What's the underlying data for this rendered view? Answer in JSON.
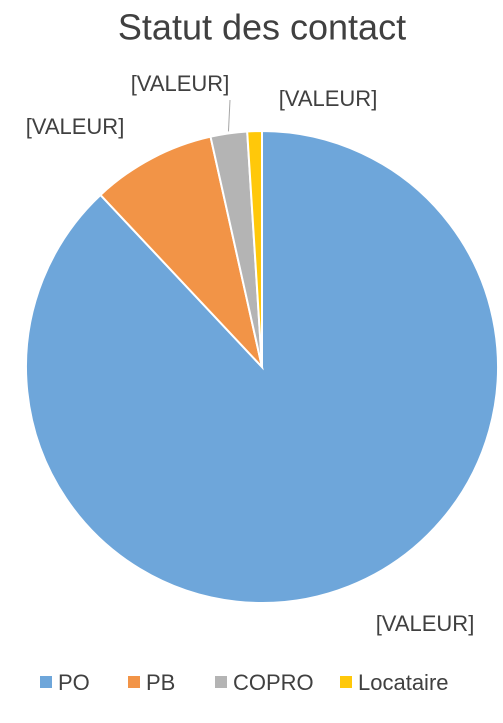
{
  "chart_data": {
    "type": "pie",
    "title": "Statut des contact",
    "categories": [
      "PO",
      "PB",
      "COPRO",
      "Locataire"
    ],
    "values": [
      88,
      8.5,
      2.5,
      1
    ],
    "value_labels": [
      "[VALEUR]",
      "[VALEUR]",
      "[VALEUR]",
      "[VALEUR]"
    ],
    "colors": [
      "#6ea6da",
      "#f29447",
      "#b4b4b4",
      "#ffc80a"
    ],
    "legend": "bottom"
  }
}
